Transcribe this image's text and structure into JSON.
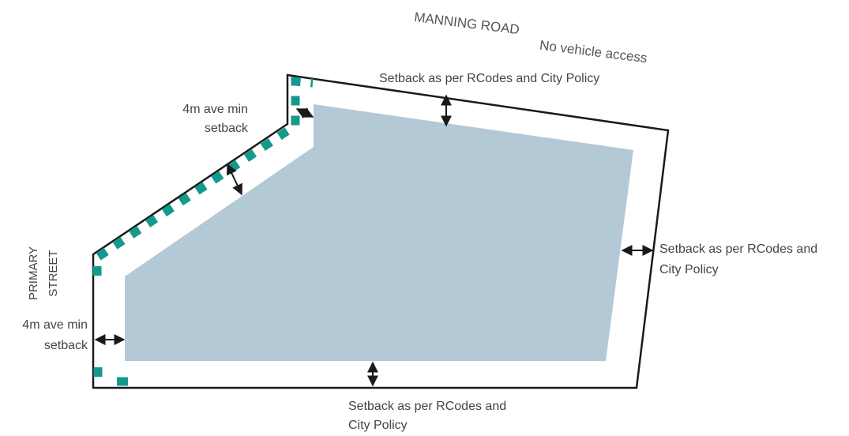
{
  "labels": {
    "manning_road": "MANNING ROAD",
    "no_vehicle_access": "No vehicle access",
    "setback_top": "Setback as per RCodes and City Policy",
    "setback_right_line1": "Setback as per RCodes  and",
    "setback_right_line2": "City Policy",
    "setback_bottom_line1": "Setback as per RCodes and",
    "setback_bottom_line2": "City Policy",
    "setback_diag_line1": "4m ave min",
    "setback_diag_line2": "setback",
    "setback_left_line1": "4m ave min",
    "setback_left_line2": "setback",
    "primary_line1": "PRIMARY",
    "primary_line2": "STREET"
  },
  "colors": {
    "lot_outline": "#1a1a1a",
    "building_area": "#b3c9d6",
    "dashed_frontage": "#149a8d",
    "arrow": "#1a1a1a"
  }
}
